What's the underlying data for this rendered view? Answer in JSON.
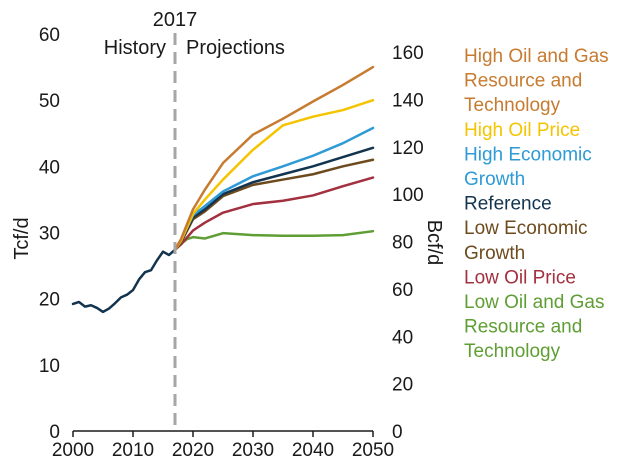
{
  "chart_data": {
    "type": "line",
    "annotations": {
      "year_marker": "2017",
      "history": "History",
      "projections": "Projections"
    },
    "marker_x": 2017,
    "xlim": [
      2000,
      2050
    ],
    "x_ticks": [
      "2000",
      "2010",
      "2020",
      "2030",
      "2040",
      "2050"
    ],
    "y_left": {
      "label": "Tcf/d",
      "ylim": [
        0,
        60
      ],
      "ticks": [
        "0",
        "10",
        "20",
        "30",
        "40",
        "50",
        "60"
      ]
    },
    "y_right": {
      "label": "Bcf/d",
      "ticks": [
        "0",
        "20",
        "40",
        "60",
        "80",
        "100",
        "120",
        "140",
        "160"
      ]
    },
    "legend": [
      {
        "lines": [
          "High Oil and Gas",
          "Resource and",
          "Technology"
        ],
        "color": "#C77B30"
      },
      {
        "lines": [
          "High Oil Price"
        ],
        "color": "#F5C400"
      },
      {
        "lines": [
          "High Economic",
          "Growth"
        ],
        "color": "#2E9AD6"
      },
      {
        "lines": [
          "Reference"
        ],
        "color": "#13344F"
      },
      {
        "lines": [
          "Low Economic",
          "Growth"
        ],
        "color": "#6E4B1E"
      },
      {
        "lines": [
          "Low Oil Price"
        ],
        "color": "#A3303F"
      },
      {
        "lines": [
          "Low Oil and Gas",
          "Resource and",
          "Technology"
        ],
        "color": "#5F9E34"
      }
    ],
    "history_series": {
      "name": "Reference",
      "color": "#13344F",
      "x": [
        2000,
        2001,
        2002,
        2003,
        2004,
        2005,
        2006,
        2007,
        2008,
        2009,
        2010,
        2011,
        2012,
        2013,
        2014,
        2015,
        2016,
        2017
      ],
      "values": [
        19.2,
        19.5,
        18.8,
        19.0,
        18.6,
        18.0,
        18.5,
        19.3,
        20.2,
        20.6,
        21.3,
        22.9,
        24.0,
        24.3,
        25.8,
        27.1,
        26.6,
        27.4
      ]
    },
    "series": [
      {
        "name": "High Oil and Gas Resource and Technology",
        "color": "#C77B30",
        "x": [
          2017,
          2018,
          2020,
          2022,
          2025,
          2030,
          2035,
          2040,
          2045,
          2050
        ],
        "values": [
          27.4,
          29.0,
          33.5,
          36.5,
          40.5,
          44.8,
          47.2,
          49.8,
          52.3,
          55.0
        ]
      },
      {
        "name": "High Oil Price",
        "color": "#F5C400",
        "x": [
          2017,
          2018,
          2020,
          2022,
          2025,
          2030,
          2035,
          2040,
          2045,
          2050
        ],
        "values": [
          27.4,
          28.7,
          32.8,
          35.0,
          38.0,
          42.5,
          46.2,
          47.5,
          48.5,
          50.0
        ]
      },
      {
        "name": "High Economic Growth",
        "color": "#2E9AD6",
        "x": [
          2017,
          2018,
          2020,
          2022,
          2025,
          2030,
          2035,
          2040,
          2045,
          2050
        ],
        "values": [
          27.4,
          28.8,
          32.6,
          34.0,
          36.2,
          38.5,
          40.0,
          41.6,
          43.5,
          45.8
        ]
      },
      {
        "name": "Reference",
        "color": "#13344F",
        "x": [
          2017,
          2018,
          2020,
          2022,
          2025,
          2030,
          2035,
          2040,
          2045,
          2050
        ],
        "values": [
          27.4,
          28.6,
          32.3,
          33.5,
          35.8,
          37.6,
          38.8,
          40.0,
          41.4,
          42.8
        ]
      },
      {
        "name": "Low Economic Growth",
        "color": "#6E4B1E",
        "x": [
          2017,
          2018,
          2020,
          2022,
          2025,
          2030,
          2035,
          2040,
          2045,
          2050
        ],
        "values": [
          27.4,
          28.5,
          32.0,
          33.2,
          35.5,
          37.2,
          38.0,
          38.8,
          40.0,
          41.0
        ]
      },
      {
        "name": "Low Oil Price",
        "color": "#A3303F",
        "x": [
          2017,
          2018,
          2020,
          2022,
          2025,
          2030,
          2035,
          2040,
          2045,
          2050
        ],
        "values": [
          27.4,
          28.2,
          30.3,
          31.5,
          33.0,
          34.3,
          34.8,
          35.6,
          37.0,
          38.3
        ]
      },
      {
        "name": "Low Oil and Gas Resource and Technology",
        "color": "#5F9E34",
        "x": [
          2017,
          2018,
          2019,
          2020,
          2022,
          2025,
          2030,
          2035,
          2040,
          2045,
          2050
        ],
        "values": [
          27.4,
          28.3,
          29.0,
          29.3,
          29.1,
          29.9,
          29.6,
          29.5,
          29.5,
          29.6,
          30.2
        ]
      }
    ]
  }
}
